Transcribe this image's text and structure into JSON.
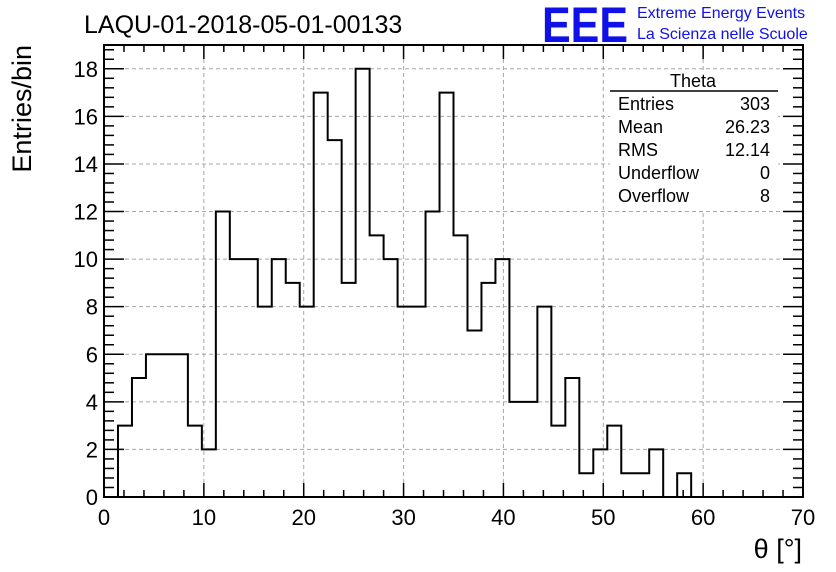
{
  "chart_data": {
    "type": "bar",
    "title": "LAQU-01-2018-05-01-00133",
    "xlabel": "θ [°]",
    "ylabel": "Entries/bin",
    "xlim": [
      0,
      70
    ],
    "ylim": [
      0,
      19
    ],
    "grid": true,
    "bin_width": 1.4,
    "x_ticks": [
      0,
      10,
      20,
      30,
      40,
      50,
      60,
      70
    ],
    "y_ticks": [
      0,
      2,
      4,
      6,
      8,
      10,
      12,
      14,
      16,
      18
    ],
    "x": [
      0.7,
      2.1,
      3.5,
      4.9,
      6.3,
      7.7,
      9.1,
      10.5,
      11.9,
      13.3,
      14.7,
      16.1,
      17.5,
      18.9,
      20.3,
      21.7,
      23.1,
      24.5,
      25.9,
      27.3,
      28.7,
      30.1,
      31.5,
      32.9,
      34.3,
      35.7,
      37.1,
      38.5,
      39.9,
      41.3,
      42.7,
      44.1,
      45.5,
      46.9,
      48.3,
      49.7,
      51.1,
      52.5,
      53.9,
      55.3,
      56.7,
      58.1,
      59.5,
      60.9,
      62.3,
      63.7,
      65.1,
      66.5,
      67.9,
      69.3
    ],
    "values": [
      0,
      3,
      5,
      6,
      6,
      6,
      3,
      2,
      12,
      10,
      10,
      8,
      10,
      9,
      8,
      17,
      15,
      9,
      18,
      11,
      10,
      8,
      8,
      12,
      17,
      11,
      7,
      9,
      10,
      4,
      4,
      8,
      3,
      5,
      1,
      2,
      3,
      1,
      1,
      2,
      0,
      1,
      0,
      0,
      0,
      0,
      0,
      0,
      0,
      0
    ],
    "stats_box": {
      "name": "Theta",
      "rows": [
        {
          "label": "Entries",
          "value": "303"
        },
        {
          "label": "Mean",
          "value": "26.23"
        },
        {
          "label": "RMS",
          "value": "12.14"
        },
        {
          "label": "Underflow",
          "value": "0"
        },
        {
          "label": "Overflow",
          "value": "8"
        }
      ],
      "placement": "top-right"
    }
  },
  "logo": {
    "mark": "EEE",
    "line1": "Extreme Energy Events",
    "line2": "La Scienza nelle Scuole",
    "color": "#1010e8"
  },
  "colors": {
    "histogram": "#000000",
    "grid": "#a8a8a8",
    "logo": "#1010e8"
  }
}
